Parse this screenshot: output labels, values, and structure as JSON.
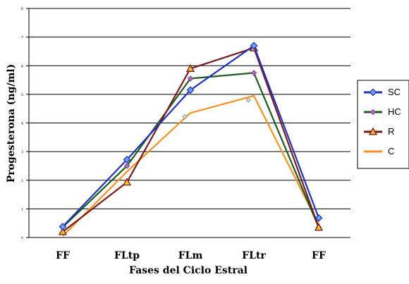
{
  "chart_data": {
    "type": "line",
    "xlabel": "Fases del Ciclo Estral",
    "ylabel": "Progesterona (ng/ml)",
    "categories": [
      "FF",
      "FLtp",
      "FLm",
      "FLtr",
      "FF"
    ],
    "ylim": [
      0,
      8
    ],
    "yticks": [
      "0",
      "1",
      "2",
      "3",
      "4",
      "5",
      "6",
      "7",
      "8"
    ],
    "grid": "horizontal",
    "legend_position": "right",
    "series": [
      {
        "name": "SC",
        "color": "#2233bb",
        "marker": "diamond",
        "values": [
          0.38,
          2.72,
          5.15,
          6.7,
          0.68
        ]
      },
      {
        "name": "HC",
        "color": "#1f5c1f",
        "marker": "diamond-small",
        "values": [
          0.36,
          2.5,
          5.55,
          5.75,
          0.35
        ]
      },
      {
        "name": "R",
        "color": "#7a1a1a",
        "marker": "triangle",
        "values": [
          0.2,
          1.93,
          5.9,
          6.62,
          0.35
        ]
      },
      {
        "name": "C",
        "color": "#f79222",
        "marker": "none",
        "values": [
          0.05,
          2.3,
          4.35,
          4.95,
          0.45
        ]
      }
    ],
    "extra_points": [
      {
        "category_index": 2,
        "value": 4.22
      },
      {
        "category_index": 3,
        "value": 4.8
      }
    ]
  }
}
